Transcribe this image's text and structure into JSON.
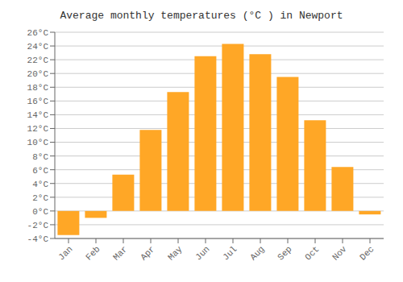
{
  "chart_data": {
    "type": "bar",
    "title": "Average monthly temperatures (°C ) in Newport",
    "categories": [
      "Jan",
      "Feb",
      "Mar",
      "Apr",
      "May",
      "Jun",
      "Jul",
      "Aug",
      "Sep",
      "Oct",
      "Nov",
      "Dec"
    ],
    "values": [
      -3.5,
      -1.0,
      5.3,
      11.8,
      17.3,
      22.5,
      24.3,
      22.8,
      19.5,
      13.2,
      6.4,
      -0.5
    ],
    "color": "#FFA726",
    "ylim": [
      -4,
      26
    ],
    "yticks": [
      {
        "value": -4,
        "label": "-4°C"
      },
      {
        "value": -2,
        "label": "-2°C"
      },
      {
        "value": 0,
        "label": "0°C"
      },
      {
        "value": 2,
        "label": "2°C"
      },
      {
        "value": 4,
        "label": "4°C"
      },
      {
        "value": 6,
        "label": "6°C"
      },
      {
        "value": 8,
        "label": "8°C"
      },
      {
        "value": 10,
        "label": "10°C"
      },
      {
        "value": 12,
        "label": "12°C"
      },
      {
        "value": 14,
        "label": "14°C"
      },
      {
        "value": 16,
        "label": "16°C"
      },
      {
        "value": 18,
        "label": "18°C"
      },
      {
        "value": 20,
        "label": "20°C"
      },
      {
        "value": 22,
        "label": "22°C"
      },
      {
        "value": 24,
        "label": "24°C"
      },
      {
        "value": 26,
        "label": "26°C"
      }
    ],
    "grid": true
  }
}
